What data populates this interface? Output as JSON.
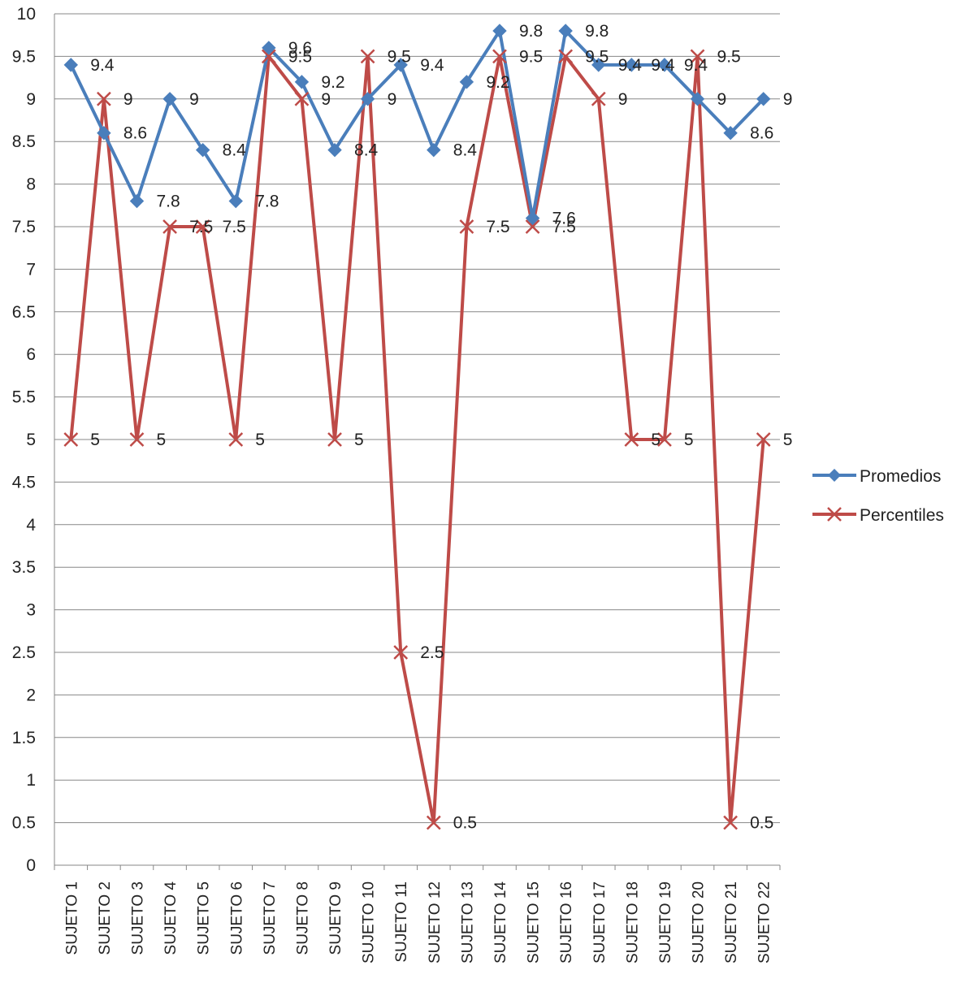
{
  "chart_data": {
    "type": "line",
    "title": "",
    "xlabel": "",
    "ylabel": "",
    "ylim": [
      0,
      10
    ],
    "y_ticks": [
      "0",
      "0.5",
      "1",
      "1.5",
      "2",
      "2.5",
      "3",
      "3.5",
      "4",
      "4.5",
      "5",
      "5.5",
      "6",
      "6.5",
      "7",
      "7.5",
      "8",
      "8.5",
      "9",
      "9.5",
      "10"
    ],
    "categories": [
      "SUJETO 1",
      "SUJETO 2",
      "SUJETO 3",
      "SUJETO 4",
      "SUJETO 5",
      "SUJETO 6",
      "SUJETO 7",
      "SUJETO 8",
      "SUJETO 9",
      "SUJETO 10",
      "SUJETO 11",
      "SUJETO 12",
      "SUJETO 13",
      "SUJETO 14",
      "SUJETO 15",
      "SUJETO 16",
      "SUJETO 17",
      "SUJETO 18",
      "SUJETO 19",
      "SUJETO 20",
      "SUJETO 21",
      "SUJETO 22"
    ],
    "grid": "horizontal",
    "legend_position": "right",
    "series": [
      {
        "name": "Promedios",
        "color": "#4a7ebb",
        "marker": "diamond",
        "values": [
          9.4,
          8.6,
          7.8,
          9,
          8.4,
          7.8,
          9.6,
          9.2,
          8.4,
          9,
          9.4,
          8.4,
          9.2,
          9.8,
          7.6,
          9.8,
          9.4,
          9.4,
          9.4,
          9,
          8.6,
          9
        ],
        "labels": [
          "9.4",
          "8.6",
          "7.8",
          "9",
          "8.4",
          "7.8",
          "9.6",
          "9.2",
          "8.4",
          "9",
          "9.4",
          "8.4",
          "9.2",
          "9.8",
          "7.6",
          "9.8",
          "9.4",
          "9.4",
          "9.4",
          "9",
          "8.6",
          "9"
        ]
      },
      {
        "name": "Percentiles",
        "color": "#be4b48",
        "marker": "x",
        "values": [
          5,
          9,
          5,
          7.5,
          7.5,
          5,
          9.5,
          9,
          5,
          9.5,
          2.5,
          0.5,
          7.5,
          9.5,
          7.5,
          9.5,
          9,
          5,
          5,
          9.5,
          0.5,
          5
        ],
        "labels": [
          "5",
          "9",
          "5",
          "7.5",
          "7.5",
          "5",
          "9.5",
          "9",
          "5",
          "9.5",
          "2.5",
          "0.5",
          "7.5",
          "9.5",
          "7.5",
          "9.5",
          "9",
          "5",
          "5",
          "9.5",
          "0.5",
          "5"
        ]
      }
    ]
  }
}
